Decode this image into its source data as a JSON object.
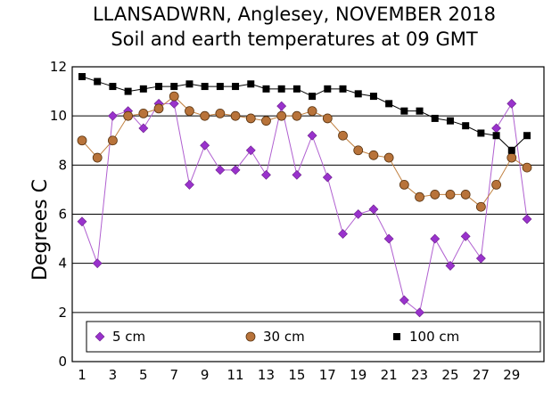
{
  "chart_data": {
    "type": "line",
    "title": "LLANSADWRN, Anglesey, NOVEMBER 2018",
    "subtitle": "Soil and earth temperatures at 09 GMT",
    "ylabel": "Degrees C",
    "xlabel": "",
    "xlim": [
      1,
      30
    ],
    "ylim": [
      0,
      12
    ],
    "x": [
      1,
      2,
      3,
      4,
      5,
      6,
      7,
      8,
      9,
      10,
      11,
      12,
      13,
      14,
      15,
      16,
      17,
      18,
      19,
      20,
      21,
      22,
      23,
      24,
      25,
      26,
      27,
      28,
      29,
      30
    ],
    "x_ticks": [
      "1",
      "3",
      "5",
      "7",
      "9",
      "11",
      "13",
      "15",
      "17",
      "19",
      "21",
      "23",
      "25",
      "27",
      "29"
    ],
    "y_ticks": [
      "0",
      "2",
      "4",
      "6",
      "8",
      "10",
      "12"
    ],
    "grid": "horizontal",
    "legend_position": "bottom-inside",
    "series": [
      {
        "name": "5 cm",
        "marker": "diamond",
        "color": "#9932cc",
        "line_color": "#b060d0",
        "values": [
          5.7,
          4.0,
          10.0,
          10.2,
          9.5,
          10.5,
          10.5,
          7.2,
          8.8,
          7.8,
          7.8,
          8.6,
          7.6,
          10.4,
          7.6,
          9.2,
          7.5,
          5.2,
          6.0,
          6.2,
          5.0,
          2.5,
          2.0,
          5.0,
          3.9,
          5.1,
          4.2,
          9.5,
          10.5,
          5.8
        ]
      },
      {
        "name": "30 cm",
        "marker": "circle",
        "color": "#b8733a",
        "line_color": "#c08040",
        "values": [
          9.0,
          8.3,
          9.0,
          10.0,
          10.1,
          10.3,
          10.8,
          10.2,
          10.0,
          10.1,
          10.0,
          9.9,
          9.8,
          10.0,
          10.0,
          10.2,
          9.9,
          9.2,
          8.6,
          8.4,
          8.3,
          7.2,
          6.7,
          6.8,
          6.8,
          6.8,
          6.3,
          7.2,
          8.3,
          7.9
        ]
      },
      {
        "name": "100 cm",
        "marker": "square",
        "color": "#000000",
        "line_color": "#000000",
        "values": [
          11.6,
          11.4,
          11.2,
          11.0,
          11.1,
          11.2,
          11.2,
          11.3,
          11.2,
          11.2,
          11.2,
          11.3,
          11.1,
          11.1,
          11.1,
          10.8,
          11.1,
          11.1,
          10.9,
          10.8,
          10.5,
          10.2,
          10.2,
          9.9,
          9.8,
          9.6,
          9.3,
          9.2,
          8.6,
          9.2
        ]
      }
    ]
  }
}
